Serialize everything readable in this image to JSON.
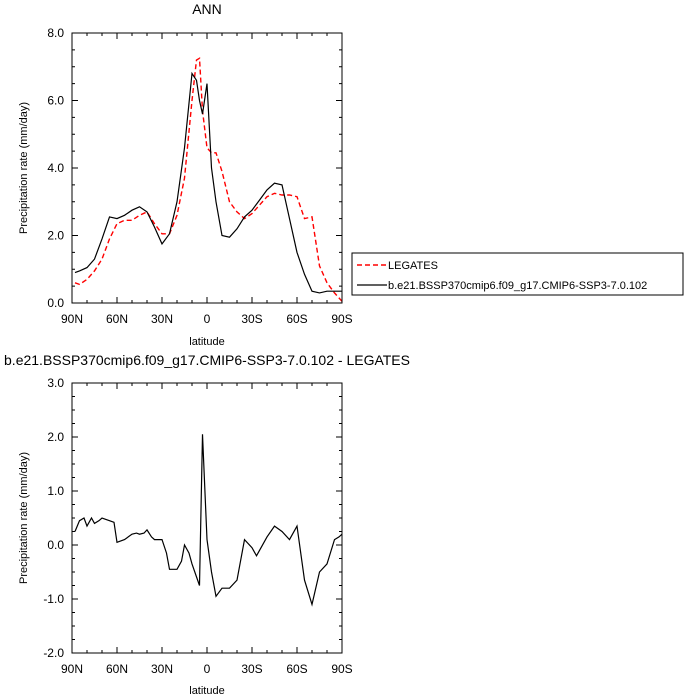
{
  "colors": {
    "model": "#000000",
    "obs": "#ff0000",
    "frame": "#000000"
  },
  "chart_data": [
    {
      "type": "line",
      "title": "ANN",
      "xlabel": "latitude",
      "ylabel": "Precipitation rate (mm/day)",
      "x_tick_labels": [
        "90N",
        "60N",
        "30N",
        "0",
        "30S",
        "60S",
        "90S"
      ],
      "y_tick_labels": [
        "0.0",
        "2.0",
        "4.0",
        "6.0",
        "8.0"
      ],
      "xlim": [
        90,
        -90
      ],
      "ylim": [
        0,
        8
      ],
      "legend": {
        "placement": "right-outside"
      },
      "series": [
        {
          "name": "LEGATES",
          "style": "dashed",
          "x": [
            88,
            85,
            80,
            75,
            70,
            65,
            60,
            55,
            50,
            45,
            40,
            35,
            30,
            25,
            20,
            15,
            10,
            7,
            5,
            3,
            0,
            -3,
            -6,
            -10,
            -15,
            -20,
            -25,
            -30,
            -35,
            -40,
            -45,
            -50,
            -55,
            -60,
            -65,
            -70,
            -75,
            -80,
            -85,
            -90
          ],
          "values": [
            0.6,
            0.55,
            0.7,
            0.95,
            1.3,
            1.9,
            2.35,
            2.45,
            2.45,
            2.6,
            2.7,
            2.35,
            2.05,
            2.05,
            2.6,
            3.7,
            6.0,
            7.2,
            7.25,
            5.7,
            4.6,
            4.45,
            4.45,
            3.9,
            3.0,
            2.7,
            2.5,
            2.65,
            2.9,
            3.15,
            3.25,
            3.2,
            3.2,
            3.15,
            2.5,
            2.55,
            1.1,
            0.6,
            0.3,
            0.05
          ]
        },
        {
          "name": "b.e21.BSSP370cmip6.f09_g17.CMIP6-SSP3-7.0.102",
          "style": "solid",
          "x": [
            88,
            85,
            80,
            75,
            70,
            65,
            60,
            55,
            50,
            45,
            40,
            35,
            30,
            25,
            20,
            15,
            10,
            7,
            5,
            3,
            0,
            -3,
            -6,
            -10,
            -15,
            -20,
            -25,
            -30,
            -35,
            -40,
            -45,
            -50,
            -55,
            -60,
            -65,
            -70,
            -75,
            -80,
            -85,
            -90
          ],
          "values": [
            0.9,
            0.95,
            1.05,
            1.3,
            1.9,
            2.55,
            2.5,
            2.6,
            2.75,
            2.85,
            2.7,
            2.25,
            1.75,
            2.05,
            3.0,
            4.6,
            6.8,
            6.6,
            6.0,
            5.6,
            6.5,
            4.0,
            3.0,
            2.0,
            1.95,
            2.2,
            2.55,
            2.75,
            3.05,
            3.35,
            3.55,
            3.5,
            2.5,
            1.5,
            0.85,
            0.35,
            0.3,
            0.35,
            0.35,
            0.35
          ]
        }
      ]
    },
    {
      "type": "line",
      "title": "b.e21.BSSP370cmip6.f09_g17.CMIP6-SSP3-7.0.102 - LEGATES",
      "xlabel": "latitude",
      "ylabel": "Precipitation rate (mm/day)",
      "x_tick_labels": [
        "90N",
        "60N",
        "30N",
        "0",
        "30S",
        "60S",
        "90S"
      ],
      "y_tick_labels": [
        "-2.0",
        "-1.0",
        "0.0",
        "1.0",
        "2.0",
        "3.0"
      ],
      "xlim": [
        90,
        -90
      ],
      "ylim": [
        -2,
        3
      ],
      "series": [
        {
          "style": "solid",
          "x": [
            88,
            85,
            82,
            80,
            77,
            75,
            72,
            70,
            65,
            62,
            60,
            55,
            50,
            47,
            45,
            42,
            40,
            37,
            35,
            30,
            27,
            25,
            20,
            17,
            15,
            12,
            10,
            5,
            3,
            0,
            -3,
            -6,
            -10,
            -15,
            -20,
            -25,
            -30,
            -33,
            -35,
            -40,
            -45,
            -50,
            -55,
            -60,
            -65,
            -70,
            -75,
            -80,
            -85,
            -88,
            -90
          ],
          "values": [
            0.25,
            0.45,
            0.5,
            0.35,
            0.5,
            0.4,
            0.45,
            0.5,
            0.45,
            0.42,
            0.05,
            0.1,
            0.2,
            0.22,
            0.2,
            0.22,
            0.28,
            0.15,
            0.1,
            0.1,
            -0.15,
            -0.45,
            -0.45,
            -0.3,
            0.0,
            -0.15,
            -0.35,
            -0.75,
            2.05,
            0.1,
            -0.5,
            -0.95,
            -0.8,
            -0.8,
            -0.65,
            0.1,
            -0.05,
            -0.2,
            -0.1,
            0.15,
            0.35,
            0.25,
            0.1,
            0.35,
            -0.65,
            -1.1,
            -0.5,
            -0.35,
            0.1,
            0.15,
            0.2
          ]
        }
      ]
    }
  ]
}
